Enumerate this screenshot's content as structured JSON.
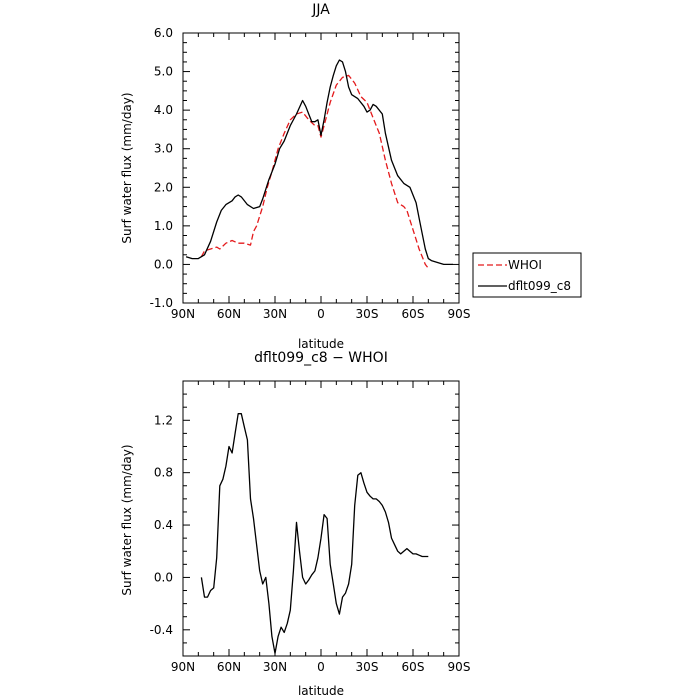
{
  "chart_data": [
    {
      "type": "line",
      "title": "JJA",
      "xlabel": "latitude",
      "ylabel": "Surf water flux (mm/day)",
      "xlim": [
        90,
        -90
      ],
      "ylim": [
        -1.0,
        6.0
      ],
      "xticks": [
        90,
        60,
        30,
        0,
        -30,
        -60,
        -90
      ],
      "xtick_labels": [
        "90N",
        "60N",
        "30N",
        "0",
        "30S",
        "60S",
        "90S"
      ],
      "yticks": [
        -1,
        0,
        1,
        2,
        3,
        4,
        5,
        6
      ],
      "ytick_labels": [
        "-1.0",
        "0.0",
        "1.0",
        "2.0",
        "3.0",
        "4.0",
        "5.0",
        "6.0"
      ],
      "legend": {
        "position": "right",
        "labels": [
          "WHOI",
          "dflt099_c8"
        ]
      },
      "series": [
        {
          "name": "WHOI",
          "color": "#e41a1c",
          "dash": "dashed",
          "x": [
            78,
            76,
            72,
            68,
            66,
            62,
            58,
            54,
            50,
            46,
            44,
            42,
            38,
            35,
            32,
            28,
            24,
            20,
            16,
            12,
            8,
            4,
            2,
            0,
            -2,
            -6,
            -10,
            -14,
            -18,
            -22,
            -26,
            -30,
            -34,
            -38,
            -42,
            -46,
            -50,
            -54,
            -56,
            -60,
            -64,
            -68,
            -70
          ],
          "y": [
            0.2,
            0.35,
            0.4,
            0.45,
            0.4,
            0.55,
            0.62,
            0.55,
            0.55,
            0.5,
            0.85,
            1.0,
            1.5,
            2.0,
            2.4,
            3.0,
            3.4,
            3.75,
            3.9,
            3.95,
            3.75,
            3.6,
            3.6,
            3.3,
            3.6,
            4.2,
            4.65,
            4.85,
            4.9,
            4.7,
            4.35,
            4.2,
            3.8,
            3.4,
            2.7,
            2.1,
            1.6,
            1.5,
            1.4,
            0.9,
            0.4,
            0.0,
            -0.1
          ]
        },
        {
          "name": "dflt099_c8",
          "color": "#000000",
          "dash": "solid",
          "x": [
            88,
            84,
            80,
            76,
            72,
            68,
            65,
            62,
            58,
            56,
            54,
            52,
            48,
            44,
            40,
            38,
            34,
            30,
            27,
            24,
            20,
            16,
            12,
            10,
            8,
            6,
            4,
            2,
            0,
            -2,
            -4,
            -6,
            -8,
            -10,
            -12,
            -14,
            -16,
            -18,
            -20,
            -24,
            -28,
            -30,
            -32,
            -34,
            -36,
            -40,
            -42,
            -46,
            -50,
            -54,
            -58,
            -62,
            -64,
            -66,
            -68,
            -70,
            -72,
            -76,
            -80,
            -86
          ],
          "y": [
            0.2,
            0.15,
            0.15,
            0.25,
            0.6,
            1.1,
            1.4,
            1.55,
            1.65,
            1.75,
            1.8,
            1.75,
            1.55,
            1.45,
            1.5,
            1.7,
            2.2,
            2.6,
            3.0,
            3.2,
            3.6,
            3.9,
            4.25,
            4.1,
            3.9,
            3.7,
            3.7,
            3.75,
            3.35,
            3.75,
            4.2,
            4.6,
            4.9,
            5.15,
            5.3,
            5.25,
            5.0,
            4.6,
            4.4,
            4.3,
            4.1,
            3.95,
            4.0,
            4.15,
            4.1,
            3.9,
            3.4,
            2.7,
            2.3,
            2.1,
            2.0,
            1.6,
            1.2,
            0.8,
            0.4,
            0.15,
            0.1,
            0.05,
            0.0,
            0.0
          ]
        }
      ]
    },
    {
      "type": "line",
      "title": "dflt099_c8 − WHOI",
      "xlabel": "latitude",
      "ylabel": "Surf water flux (mm/day)",
      "xlim": [
        90,
        -90
      ],
      "ylim": [
        -0.6,
        1.5
      ],
      "xticks": [
        90,
        60,
        30,
        0,
        -30,
        -60,
        -90
      ],
      "xtick_labels": [
        "90N",
        "60N",
        "30N",
        "0",
        "30S",
        "60S",
        "90S"
      ],
      "yticks": [
        -0.4,
        0.0,
        0.4,
        0.8,
        1.2
      ],
      "ytick_labels": [
        "-0.4",
        "0.0",
        "0.4",
        "0.8",
        "1.2"
      ],
      "series": [
        {
          "name": "",
          "color": "#000000",
          "dash": "solid",
          "x": [
            78,
            76,
            74,
            72,
            70,
            68,
            66,
            64,
            62,
            60,
            58,
            56,
            54,
            52,
            50,
            48,
            46,
            44,
            42,
            40,
            38,
            36,
            34,
            32,
            30,
            28,
            26,
            24,
            22,
            20,
            18,
            16,
            14,
            12,
            10,
            8,
            6,
            4,
            2,
            0,
            -2,
            -4,
            -6,
            -8,
            -10,
            -12,
            -14,
            -16,
            -18,
            -20,
            -22,
            -24,
            -26,
            -28,
            -30,
            -32,
            -34,
            -36,
            -38,
            -40,
            -42,
            -44,
            -46,
            -48,
            -50,
            -52,
            -54,
            -56,
            -58,
            -60,
            -62,
            -64,
            -66,
            -68,
            -70
          ],
          "y": [
            0.0,
            -0.15,
            -0.15,
            -0.1,
            -0.08,
            0.15,
            0.7,
            0.75,
            0.85,
            1.0,
            0.95,
            1.1,
            1.25,
            1.25,
            1.15,
            1.05,
            0.6,
            0.45,
            0.25,
            0.05,
            -0.05,
            0.0,
            -0.2,
            -0.45,
            -0.58,
            -0.45,
            -0.38,
            -0.42,
            -0.35,
            -0.25,
            0.05,
            0.42,
            0.2,
            0.0,
            -0.05,
            -0.02,
            0.02,
            0.05,
            0.15,
            0.3,
            0.48,
            0.45,
            0.1,
            -0.05,
            -0.2,
            -0.28,
            -0.15,
            -0.12,
            -0.05,
            0.1,
            0.55,
            0.78,
            0.8,
            0.72,
            0.65,
            0.62,
            0.6,
            0.6,
            0.58,
            0.55,
            0.5,
            0.42,
            0.3,
            0.25,
            0.2,
            0.18,
            0.2,
            0.22,
            0.2,
            0.18,
            0.18,
            0.17,
            0.16,
            0.16,
            0.16
          ]
        }
      ]
    }
  ]
}
